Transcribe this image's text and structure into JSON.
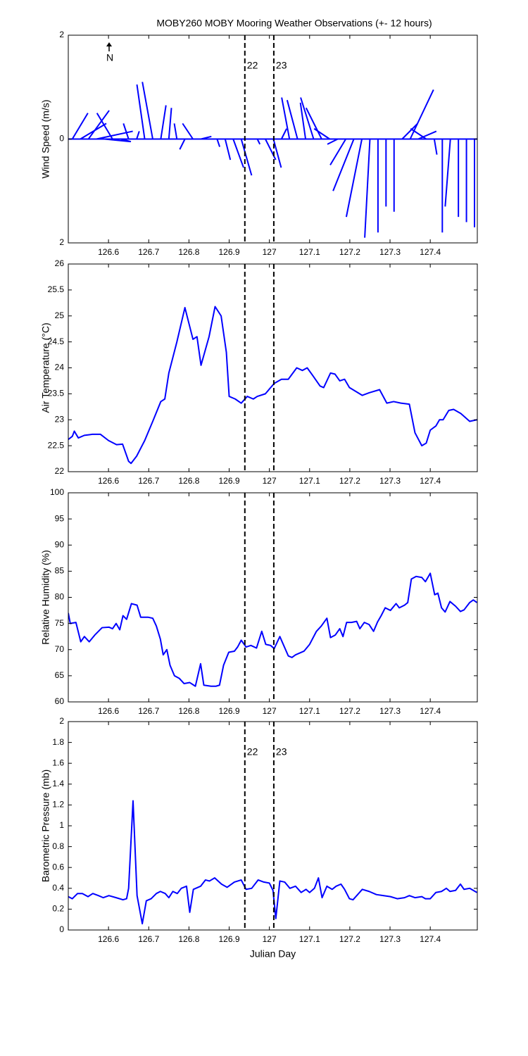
{
  "chart_data": [
    {
      "type": "stick",
      "title": "MOBY260 MOBY Mooring Weather Observations (+- 12 hours)",
      "ylabel": "Wind Speed (m/s)",
      "annotation": "N",
      "color": "#0000ff",
      "xlim": [
        126.5,
        127.517
      ],
      "xticks": [
        126.6,
        126.7,
        126.8,
        126.9,
        127,
        127.1,
        127.2,
        127.3,
        127.4
      ],
      "ylim": [
        -2,
        2
      ],
      "yticks": [
        {
          "value": -2,
          "label": "2"
        },
        0,
        2
      ],
      "vlines": [
        {
          "x": 126.939,
          "label": "22"
        },
        {
          "x": 127.011,
          "label": "23"
        }
      ],
      "x": [
        126.51,
        126.53,
        126.55,
        126.57,
        126.59,
        126.61,
        126.63,
        126.65,
        126.67,
        126.69,
        126.71,
        126.73,
        126.75,
        126.77,
        126.79,
        126.81,
        126.83,
        126.85,
        126.87,
        126.89,
        126.91,
        126.93,
        126.95,
        126.97,
        126.99,
        127.01,
        127.03,
        127.05,
        127.07,
        127.09,
        127.11,
        127.13,
        127.15,
        127.17,
        127.19,
        127.21,
        127.23,
        127.25,
        127.27,
        127.29,
        127.31,
        127.33,
        127.35,
        127.37,
        127.39,
        127.41,
        127.43,
        127.45,
        127.47,
        127.49,
        127.51
      ],
      "u": [
        0.3,
        0.5,
        0.4,
        0.7,
        0.5,
        -0.3,
        0.2,
        -0.1,
        0.05,
        -0.15,
        -0.2,
        0.1,
        0.05,
        -0.05,
        -0.1,
        -0.2,
        0.2,
        0.05,
        0.05,
        0.1,
        0.2,
        0.2,
        0.05,
        0.05,
        0.2,
        0.15,
        0.1,
        -0.15,
        -0.2,
        -0.1,
        -0.25,
        -0.3,
        -0.3,
        -0.2,
        -0.3,
        -0.4,
        -0.3,
        -0.1,
        0,
        0,
        0,
        0.3,
        0.45,
        0.35,
        -0.3,
        0.05,
        0,
        -0.1,
        0,
        0,
        0
      ],
      "v": [
        0.5,
        0.3,
        0.55,
        0.15,
        -0.05,
        0.5,
        -0.05,
        0.3,
        0.15,
        1.05,
        1.1,
        0.65,
        0.6,
        0.3,
        -0.2,
        0.3,
        0.05,
        0,
        -0.15,
        -0.4,
        -0.55,
        -0.7,
        0,
        -0.1,
        -0.4,
        -0.55,
        0.2,
        0.8,
        0.75,
        0.7,
        0.8,
        0.6,
        0.2,
        -0.1,
        -0.5,
        -1.0,
        -1.5,
        -1.9,
        -1.8,
        -1.3,
        -1.4,
        0.3,
        0.95,
        0.15,
        0.2,
        -0.3,
        -1.8,
        -1.3,
        -1.5,
        -1.6,
        -1.7
      ]
    },
    {
      "type": "line",
      "ylabel": "Air Temperature (°C)",
      "color": "#0000ff",
      "xlim": [
        126.5,
        127.517
      ],
      "xticks": [
        126.6,
        126.7,
        126.8,
        126.9,
        127,
        127.1,
        127.2,
        127.3,
        127.4
      ],
      "ylim": [
        22,
        26
      ],
      "yticks": [
        22,
        22.5,
        23,
        23.5,
        24,
        24.5,
        25,
        25.5,
        26
      ],
      "vlines": [
        126.939,
        127.011
      ],
      "x": [
        126.5,
        126.51,
        126.515,
        126.525,
        126.54,
        126.56,
        126.58,
        126.6,
        126.62,
        126.635,
        126.65,
        126.656,
        126.67,
        126.69,
        126.71,
        126.73,
        126.74,
        126.75,
        126.77,
        126.79,
        126.81,
        126.82,
        126.83,
        126.85,
        126.865,
        126.88,
        126.893,
        126.9,
        126.915,
        126.93,
        126.945,
        126.96,
        126.97,
        126.99,
        127.012,
        127.03,
        127.047,
        127.068,
        127.082,
        127.094,
        127.108,
        127.126,
        127.135,
        127.152,
        127.163,
        127.175,
        127.187,
        127.199,
        127.231,
        127.248,
        127.274,
        127.292,
        127.309,
        127.327,
        127.348,
        127.362,
        127.379,
        127.39,
        127.4,
        127.414,
        127.423,
        127.432,
        127.446,
        127.458,
        127.476,
        127.498,
        127.516
      ],
      "values": [
        22.62,
        22.68,
        22.78,
        22.65,
        22.7,
        22.72,
        22.72,
        22.6,
        22.52,
        22.53,
        22.2,
        22.16,
        22.3,
        22.6,
        22.97,
        23.35,
        23.4,
        23.9,
        24.5,
        25.16,
        24.55,
        24.6,
        24.05,
        24.6,
        25.18,
        25.0,
        24.3,
        23.45,
        23.4,
        23.32,
        23.45,
        23.4,
        23.45,
        23.5,
        23.7,
        23.78,
        23.78,
        24.0,
        23.95,
        24.0,
        23.85,
        23.65,
        23.62,
        23.9,
        23.88,
        23.75,
        23.78,
        23.62,
        23.47,
        23.52,
        23.58,
        23.32,
        23.35,
        23.32,
        23.3,
        22.75,
        22.5,
        22.55,
        22.8,
        22.88,
        23.0,
        23.0,
        23.18,
        23.2,
        23.12,
        22.97,
        23.0
      ]
    },
    {
      "type": "line",
      "ylabel": "Relative Humidity (%)",
      "color": "#0000ff",
      "xlim": [
        126.5,
        127.517
      ],
      "xticks": [
        126.6,
        126.7,
        126.8,
        126.9,
        127,
        127.1,
        127.2,
        127.3,
        127.4
      ],
      "ylim": [
        60,
        100
      ],
      "yticks": [
        60,
        65,
        70,
        75,
        80,
        85,
        90,
        95,
        100
      ],
      "vlines": [
        126.939,
        127.011
      ],
      "x": [
        126.5,
        126.505,
        126.519,
        126.531,
        126.54,
        126.552,
        126.566,
        126.584,
        126.601,
        126.61,
        126.619,
        126.628,
        126.636,
        126.645,
        126.657,
        126.671,
        126.68,
        126.698,
        126.71,
        126.719,
        126.729,
        126.736,
        126.745,
        126.753,
        126.764,
        126.776,
        126.788,
        126.802,
        126.816,
        126.829,
        126.837,
        126.855,
        126.867,
        126.876,
        126.886,
        126.899,
        126.913,
        126.921,
        126.93,
        126.942,
        126.954,
        126.968,
        126.981,
        126.991,
        127.003,
        127.012,
        127.026,
        127.047,
        127.056,
        127.065,
        127.086,
        127.1,
        127.117,
        127.129,
        127.143,
        127.152,
        127.164,
        127.175,
        127.183,
        127.192,
        127.204,
        127.217,
        127.225,
        127.236,
        127.248,
        127.259,
        127.269,
        127.278,
        127.288,
        127.301,
        127.315,
        127.323,
        127.336,
        127.344,
        127.353,
        127.365,
        127.379,
        127.388,
        127.4,
        127.411,
        127.419,
        127.428,
        127.437,
        127.449,
        127.463,
        127.475,
        127.484,
        127.498,
        127.507,
        127.516
      ],
      "values": [
        77,
        75,
        75.2,
        71.5,
        72.5,
        71.5,
        72.8,
        74.2,
        74.3,
        74,
        75,
        73.8,
        76.5,
        75.8,
        78.8,
        78.5,
        76.2,
        76.2,
        76,
        74.5,
        72,
        69,
        70,
        67,
        65,
        64.5,
        63.5,
        63.7,
        63,
        67.3,
        63.2,
        63,
        63,
        63.2,
        67,
        69.5,
        69.7,
        70.5,
        71.8,
        70.5,
        70.8,
        70.3,
        73.5,
        71,
        70.8,
        70.2,
        72.5,
        68.8,
        68.5,
        69,
        69.7,
        71,
        73.5,
        74.5,
        76,
        72.3,
        72.8,
        74,
        72.5,
        75.2,
        75.2,
        75.4,
        74,
        75.2,
        74.8,
        73.5,
        75.3,
        76.5,
        78,
        77.5,
        78.8,
        78,
        78.5,
        79,
        83.5,
        84,
        83.8,
        83,
        84.6,
        80.5,
        80.8,
        78,
        77.2,
        79.2,
        78.3,
        77.3,
        77.6,
        79,
        79.5,
        79
      ]
    },
    {
      "type": "line",
      "ylabel": "Barometric Pressure (mb)",
      "xlabel": "Julian Day",
      "color": "#0000ff",
      "xlim": [
        126.5,
        127.517
      ],
      "xticks": [
        126.6,
        126.7,
        126.8,
        126.9,
        127,
        127.1,
        127.2,
        127.3,
        127.4
      ],
      "ylim": [
        0,
        2
      ],
      "yticks": [
        0,
        0.2,
        0.4,
        0.6,
        0.8,
        1,
        1.2,
        1.4,
        1.6,
        1.8,
        2
      ],
      "vlines": [
        {
          "x": 126.939,
          "label": "22"
        },
        {
          "x": 127.011,
          "label": "23"
        }
      ],
      "x": [
        126.5,
        126.51,
        126.523,
        126.535,
        126.549,
        126.561,
        126.575,
        126.587,
        126.601,
        126.619,
        126.636,
        126.645,
        126.65,
        126.661,
        126.671,
        126.684,
        126.694,
        126.706,
        126.719,
        126.729,
        126.741,
        126.75,
        126.76,
        126.771,
        126.781,
        126.794,
        126.802,
        126.811,
        126.829,
        126.841,
        126.851,
        126.864,
        126.881,
        126.895,
        126.913,
        126.93,
        126.942,
        126.956,
        126.972,
        126.986,
        127.0,
        127.009,
        127.016,
        127.026,
        127.038,
        127.051,
        127.065,
        127.079,
        127.091,
        127.1,
        127.112,
        127.122,
        127.131,
        127.143,
        127.156,
        127.166,
        127.178,
        127.187,
        127.199,
        127.208,
        127.231,
        127.248,
        127.266,
        127.283,
        127.301,
        127.318,
        127.336,
        127.348,
        127.362,
        127.379,
        127.388,
        127.4,
        127.414,
        127.428,
        127.44,
        127.449,
        127.463,
        127.475,
        127.484,
        127.498,
        127.516
      ],
      "values": [
        0.32,
        0.3,
        0.35,
        0.35,
        0.32,
        0.35,
        0.33,
        0.31,
        0.33,
        0.31,
        0.29,
        0.3,
        0.4,
        1.24,
        0.33,
        0.06,
        0.28,
        0.3,
        0.35,
        0.37,
        0.35,
        0.31,
        0.37,
        0.35,
        0.4,
        0.42,
        0.17,
        0.39,
        0.42,
        0.48,
        0.47,
        0.5,
        0.44,
        0.41,
        0.46,
        0.48,
        0.39,
        0.4,
        0.48,
        0.46,
        0.45,
        0.38,
        0.11,
        0.47,
        0.46,
        0.4,
        0.42,
        0.36,
        0.39,
        0.36,
        0.4,
        0.5,
        0.31,
        0.42,
        0.39,
        0.42,
        0.44,
        0.39,
        0.3,
        0.29,
        0.39,
        0.37,
        0.34,
        0.33,
        0.32,
        0.3,
        0.31,
        0.33,
        0.31,
        0.32,
        0.3,
        0.3,
        0.36,
        0.37,
        0.4,
        0.37,
        0.38,
        0.44,
        0.39,
        0.4,
        0.36
      ]
    }
  ]
}
